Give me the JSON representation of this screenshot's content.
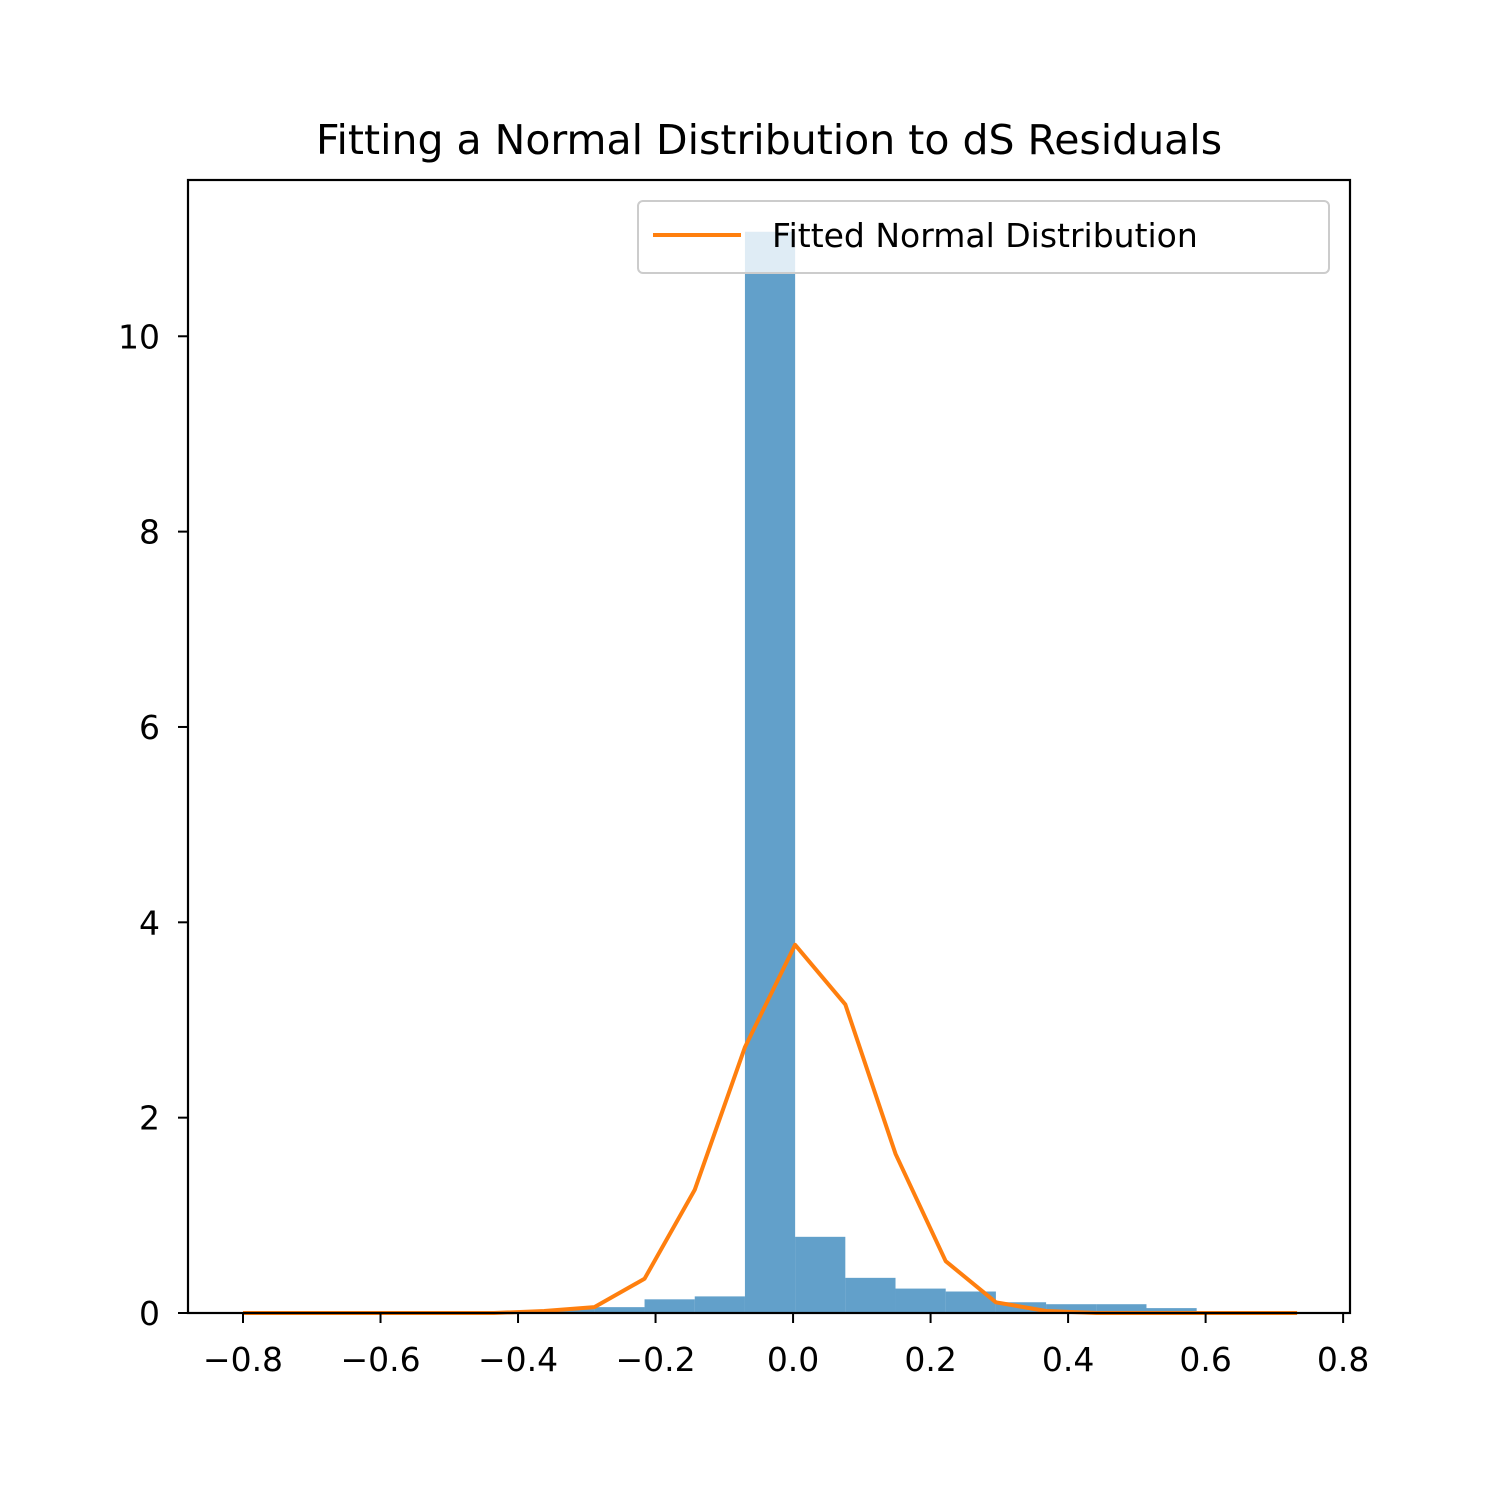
{
  "colors": {
    "bar": "#1f77b4",
    "bar_opacity": 0.7,
    "line": "#ff7f0e",
    "background": "#ffffff",
    "axes": "#000000",
    "legend_border": "#cccccc"
  },
  "chart_data": {
    "type": "bar",
    "title": "Fitting a Normal Distribution to dS Residuals",
    "xlabel": "",
    "ylabel": "",
    "xlim": [
      -0.88,
      0.81
    ],
    "ylim": [
      0,
      11.6
    ],
    "xticks": [
      -0.8,
      -0.6,
      -0.4,
      -0.2,
      0.0,
      0.2,
      0.4,
      0.6,
      0.8
    ],
    "xtick_labels": [
      "−0.8",
      "−0.6",
      "−0.4",
      "−0.2",
      "0.0",
      "0.2",
      "0.4",
      "0.6",
      "0.8"
    ],
    "yticks": [
      0,
      2,
      4,
      6,
      8,
      10
    ],
    "ytick_labels": [
      "0",
      "2",
      "4",
      "6",
      "8",
      "10"
    ],
    "grid": false,
    "legend_position": "top-right",
    "legend_entries": [
      "Fitted Normal Distribution"
    ],
    "histogram": {
      "bin_edges": [
        -0.8,
        -0.727,
        -0.654,
        -0.581,
        -0.508,
        -0.435,
        -0.362,
        -0.289,
        -0.216,
        -0.143,
        -0.07,
        0.003,
        0.076,
        0.149,
        0.222,
        0.295,
        0.368,
        0.441,
        0.514,
        0.587,
        0.66,
        0.733
      ],
      "values": [
        0.0,
        0.0,
        0.0,
        0.0,
        0.0,
        0.0,
        0.04,
        0.06,
        0.14,
        0.17,
        11.07,
        0.78,
        0.36,
        0.25,
        0.22,
        0.11,
        0.09,
        0.09,
        0.05,
        0.0,
        0.0
      ]
    },
    "series": [
      {
        "name": "Fitted Normal Distribution",
        "type": "line",
        "x": [
          -0.8,
          -0.727,
          -0.654,
          -0.581,
          -0.508,
          -0.435,
          -0.362,
          -0.289,
          -0.216,
          -0.143,
          -0.07,
          0.003,
          0.076,
          0.149,
          0.222,
          0.295,
          0.368,
          0.441,
          0.514,
          0.587,
          0.66,
          0.733
        ],
        "y": [
          0.0,
          0.0,
          0.0,
          0.0,
          0.0,
          0.0,
          0.02,
          0.06,
          0.35,
          1.26,
          2.72,
          3.77,
          3.16,
          1.63,
          0.53,
          0.11,
          0.02,
          0.0,
          0.0,
          0.0,
          0.0,
          0.0
        ]
      }
    ]
  }
}
